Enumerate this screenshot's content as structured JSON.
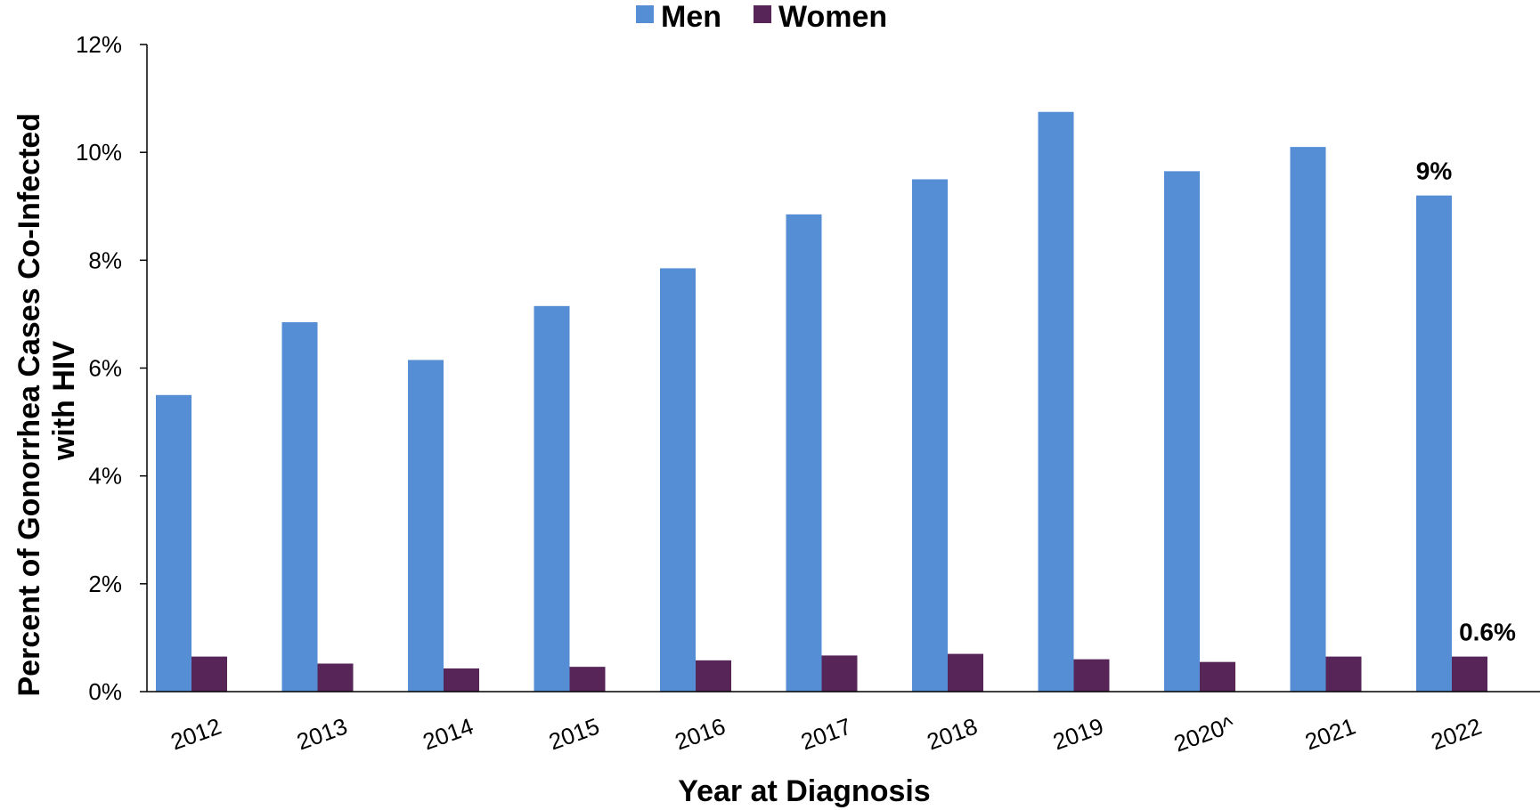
{
  "chart_data": {
    "type": "bar",
    "categories": [
      "2012",
      "2013",
      "2014",
      "2015",
      "2016",
      "2017",
      "2018",
      "2019",
      "2020^",
      "2021",
      "2022"
    ],
    "series": [
      {
        "name": "Men",
        "color": "#558ED5",
        "values": [
          5.5,
          6.85,
          6.15,
          7.15,
          7.85,
          8.85,
          9.5,
          10.75,
          9.65,
          10.1,
          9.2
        ]
      },
      {
        "name": "Women",
        "color": "#582559",
        "values": [
          0.65,
          0.52,
          0.43,
          0.46,
          0.58,
          0.67,
          0.7,
          0.6,
          0.55,
          0.65,
          0.65
        ]
      }
    ],
    "ylim": [
      0,
      12
    ],
    "yticks": [
      0,
      2,
      4,
      6,
      8,
      10,
      12
    ],
    "ytick_labels": [
      "0%",
      "2%",
      "4%",
      "6%",
      "8%",
      "10%",
      "12%"
    ],
    "xlabel": "Year at Diagnosis",
    "ylabel_lines": [
      "Percent  of Gonorrhea Cases Co-Infected",
      "with HIV"
    ],
    "legend_position": "top-center",
    "grid": false,
    "annotations": [
      {
        "series": "Men",
        "category": "2022",
        "text": "9%"
      },
      {
        "series": "Women",
        "category": "2022",
        "text": "0.6%"
      }
    ]
  }
}
